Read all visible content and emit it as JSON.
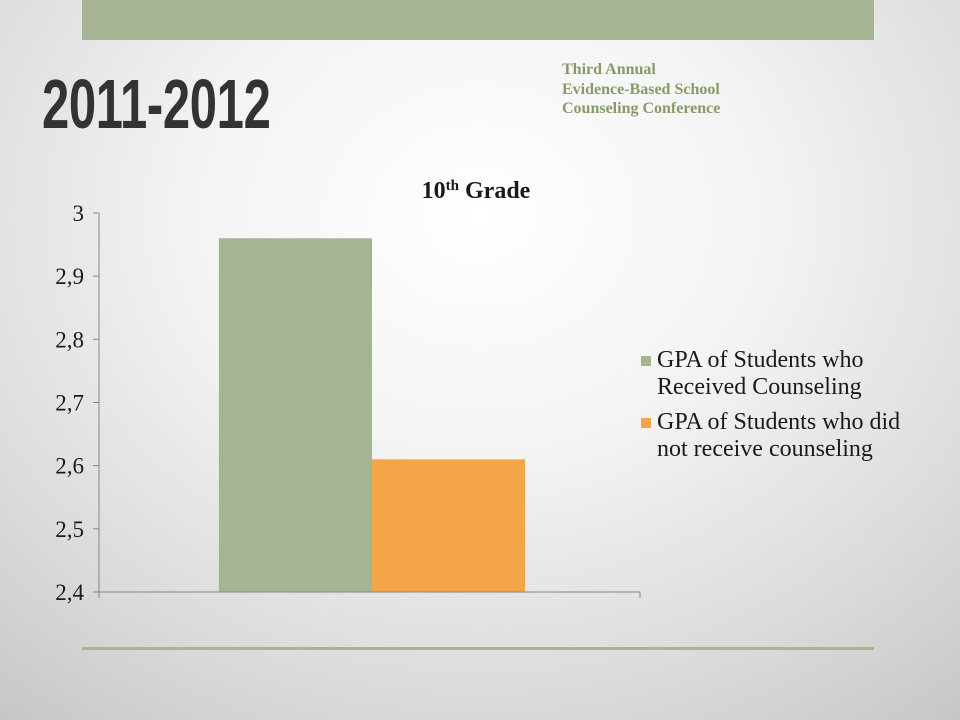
{
  "slide": {
    "title": "2011-2012",
    "conference_lines": [
      "Third Annual",
      "Evidence-Based School",
      "Counseling Conference"
    ]
  },
  "colors": {
    "accent_green": "#a8b594",
    "title_text": "#333333",
    "conference_text": "#889a6a",
    "axis": "#868686"
  },
  "chart_data": {
    "type": "bar",
    "title": "10th Grade",
    "series": [
      {
        "name": "GPA of Students who Received Counseling",
        "values": [
          2.96
        ],
        "color": "#a5b592"
      },
      {
        "name": "GPA of Students who did not receive counseling",
        "values": [
          2.61
        ],
        "color": "#f4a548"
      }
    ],
    "ylim": [
      2.4,
      3
    ],
    "yticks": [
      2.4,
      2.5,
      2.6,
      2.7,
      2.8,
      2.9,
      3
    ],
    "ytick_labels": [
      "2,4",
      "2,5",
      "2,6",
      "2,7",
      "2,8",
      "2,9",
      "3"
    ],
    "grid": false,
    "legend": "right"
  }
}
